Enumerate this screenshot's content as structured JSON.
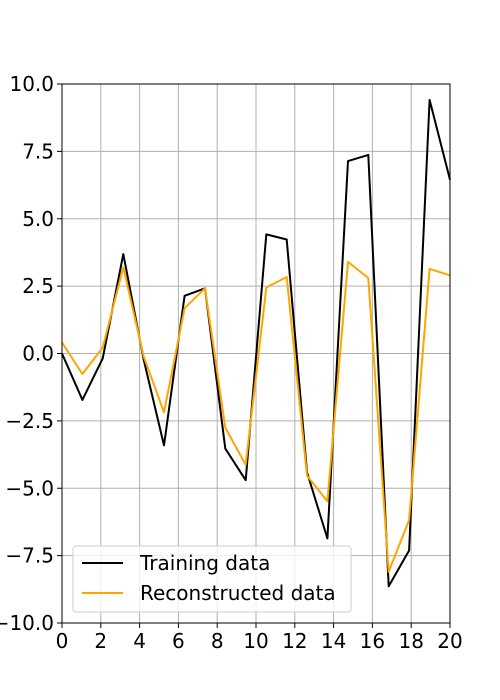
{
  "chart_data": {
    "type": "line",
    "title": "",
    "xlabel": "",
    "ylabel": "",
    "xlim": [
      0,
      20
    ],
    "ylim": [
      -10,
      10
    ],
    "xticks": [
      0,
      2,
      4,
      6,
      8,
      10,
      12,
      14,
      16,
      18,
      20
    ],
    "xtick_labels": [
      "0",
      "2",
      "4",
      "6",
      "8",
      "10",
      "12",
      "14",
      "16",
      "18",
      "20"
    ],
    "yticks": [
      -10,
      -7.5,
      -5,
      -2.5,
      0,
      2.5,
      5,
      7.5,
      10
    ],
    "ytick_labels": [
      "−10.0",
      "−7.5",
      "−5.0",
      "−2.5",
      "0.0",
      "2.5",
      "5.0",
      "7.5",
      "10.0"
    ],
    "grid": true,
    "legend_position": "lower-left",
    "x": [
      0,
      1.05,
      2.1,
      3.16,
      4.21,
      5.26,
      6.32,
      7.37,
      8.42,
      9.47,
      10.53,
      11.58,
      12.63,
      13.68,
      14.74,
      15.79,
      16.84,
      17.89,
      18.95,
      20
    ],
    "series": [
      {
        "name": "Training data",
        "color": "#000000",
        "values": [
          0.0,
          -1.72,
          -0.18,
          3.69,
          -0.23,
          -3.41,
          2.14,
          2.42,
          -3.53,
          -4.7,
          4.42,
          4.23,
          -4.41,
          -6.86,
          7.14,
          7.37,
          -8.64,
          -7.31,
          9.41,
          6.45
        ]
      },
      {
        "name": "Reconstructed data",
        "color": "#ffa500",
        "values": [
          0.41,
          -0.76,
          0.22,
          3.2,
          -0.11,
          -2.18,
          1.68,
          2.42,
          -2.75,
          -4.13,
          2.45,
          2.84,
          -4.53,
          -5.48,
          3.4,
          2.8,
          -8.1,
          -6.18,
          3.14,
          2.9
        ]
      }
    ]
  }
}
